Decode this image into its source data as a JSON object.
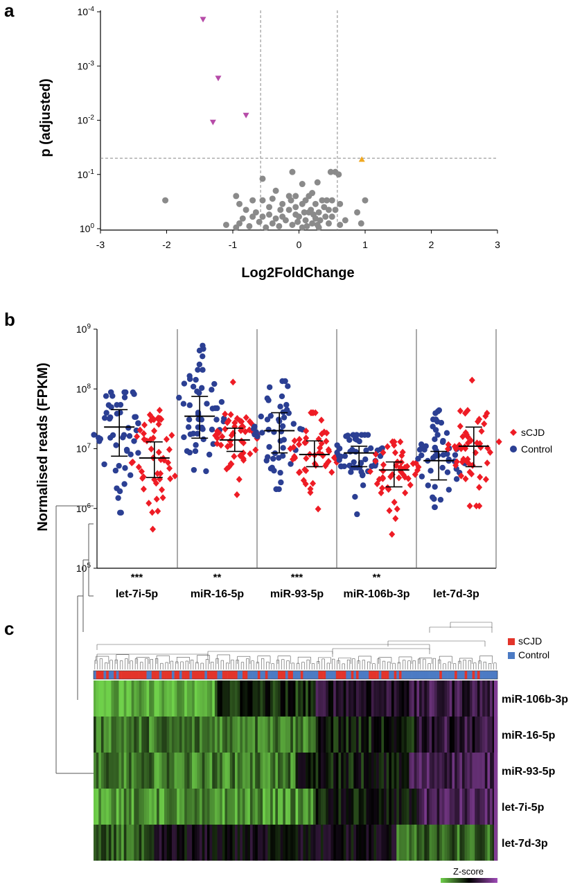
{
  "panels": {
    "a": {
      "letter": "a"
    },
    "b": {
      "letter": "b"
    },
    "c": {
      "letter": "c"
    }
  },
  "chart_data": [
    {
      "type": "scatter",
      "panel": "a",
      "xlabel": "Log2FoldChange",
      "ylabel": "p (adjusted)",
      "xlim": [
        -3,
        3
      ],
      "x_ticks": [
        "-3",
        "-2",
        "-1",
        "0",
        "1",
        "2",
        "3"
      ],
      "y_scale": "log (reversed)",
      "y_ticks": [
        {
          "base": "10",
          "exp": "-4",
          "value": 0.0001
        },
        {
          "base": "10",
          "exp": "-3",
          "value": 0.001
        },
        {
          "base": "10",
          "exp": "-2",
          "value": 0.01
        },
        {
          "base": "10",
          "exp": "-1",
          "value": 0.1
        },
        {
          "base": "10",
          "exp": "0",
          "value": 1
        }
      ],
      "thresholds": {
        "x": [
          -0.58,
          0.58
        ],
        "p": 0.05
      },
      "colors": {
        "down": "#b64ba8",
        "up": "#f0a821",
        "ns": "#8a8a8a"
      },
      "significant_down": [
        {
          "x": -1.45,
          "p": 0.00014
        },
        {
          "x": -1.22,
          "p": 0.0017
        },
        {
          "x": -1.3,
          "p": 0.011
        },
        {
          "x": -0.8,
          "p": 0.0082
        }
      ],
      "significant_up": [
        {
          "x": 0.95,
          "p": 0.052
        }
      ],
      "not_significant": [
        {
          "x": -2.02,
          "p": 0.3
        },
        {
          "x": -0.55,
          "p": 0.12
        },
        {
          "x": -0.1,
          "p": 0.09
        },
        {
          "x": 0.05,
          "p": 0.15
        },
        {
          "x": 0.28,
          "p": 0.14
        },
        {
          "x": 0.48,
          "p": 0.09
        },
        {
          "x": 0.55,
          "p": 0.09
        },
        {
          "x": 0.6,
          "p": 0.1
        },
        {
          "x": 1.0,
          "p": 0.3
        },
        {
          "x": 0.55,
          "p": 0.45
        },
        {
          "x": 0.62,
          "p": 0.35
        },
        {
          "x": 0.88,
          "p": 0.5
        },
        {
          "x": 0.94,
          "p": 0.8
        },
        {
          "x": 0.7,
          "p": 0.7
        },
        {
          "x": 0.45,
          "p": 0.8
        },
        {
          "x": 0.3,
          "p": 0.5
        },
        {
          "x": -0.95,
          "p": 0.25
        },
        {
          "x": -0.9,
          "p": 0.35
        },
        {
          "x": -0.8,
          "p": 0.45
        },
        {
          "x": -0.7,
          "p": 0.3
        },
        {
          "x": -0.65,
          "p": 0.5
        },
        {
          "x": -0.55,
          "p": 0.3
        },
        {
          "x": -0.45,
          "p": 0.55
        },
        {
          "x": -0.35,
          "p": 0.2
        },
        {
          "x": -0.25,
          "p": 0.35
        },
        {
          "x": -0.15,
          "p": 0.25
        },
        {
          "x": -0.05,
          "p": 0.4
        },
        {
          "x": 0.1,
          "p": 0.3
        },
        {
          "x": 0.2,
          "p": 0.22
        },
        {
          "x": 0.35,
          "p": 0.3
        },
        {
          "x": 0.15,
          "p": 0.5
        },
        {
          "x": 0.0,
          "p": 0.6
        },
        {
          "x": -0.2,
          "p": 0.7
        },
        {
          "x": -0.4,
          "p": 0.8
        },
        {
          "x": -0.6,
          "p": 0.75
        },
        {
          "x": -0.85,
          "p": 0.65
        },
        {
          "x": -1.1,
          "p": 0.85
        },
        {
          "x": -0.95,
          "p": 0.95
        },
        {
          "x": -0.75,
          "p": 0.9
        },
        {
          "x": -0.5,
          "p": 0.95
        },
        {
          "x": -0.3,
          "p": 0.9
        },
        {
          "x": -0.1,
          "p": 0.85
        },
        {
          "x": 0.05,
          "p": 0.95
        },
        {
          "x": 0.2,
          "p": 0.8
        },
        {
          "x": 0.3,
          "p": 0.95
        },
        {
          "x": 0.4,
          "p": 0.6
        },
        {
          "x": 0.1,
          "p": 0.7
        },
        {
          "x": -0.05,
          "p": 0.55
        },
        {
          "x": 0.25,
          "p": 0.65
        },
        {
          "x": -0.25,
          "p": 0.6
        },
        {
          "x": 0.05,
          "p": 0.35
        },
        {
          "x": 0.18,
          "p": 0.45
        },
        {
          "x": 0.38,
          "p": 0.4
        },
        {
          "x": 0.5,
          "p": 0.6
        },
        {
          "x": 0.62,
          "p": 0.85
        },
        {
          "x": -0.45,
          "p": 0.4
        },
        {
          "x": -0.15,
          "p": 0.45
        },
        {
          "x": 0.12,
          "p": 0.9
        },
        {
          "x": -0.35,
          "p": 0.65
        },
        {
          "x": 0.42,
          "p": 0.3
        },
        {
          "x": 0.22,
          "p": 0.55
        },
        {
          "x": -0.02,
          "p": 0.75
        },
        {
          "x": 0.32,
          "p": 0.7
        },
        {
          "x": -0.55,
          "p": 0.6
        },
        {
          "x": 0.08,
          "p": 0.5
        },
        {
          "x": 0.28,
          "p": 0.85
        },
        {
          "x": -0.12,
          "p": 0.3
        },
        {
          "x": -0.7,
          "p": 0.6
        },
        {
          "x": 0.15,
          "p": 0.25
        },
        {
          "x": -0.28,
          "p": 0.45
        },
        {
          "x": 0.45,
          "p": 0.45
        },
        {
          "x": -0.05,
          "p": 0.25
        },
        {
          "x": 0.25,
          "p": 0.35
        },
        {
          "x": -0.4,
          "p": 0.28
        },
        {
          "x": 0.5,
          "p": 0.3
        },
        {
          "x": -0.9,
          "p": 0.8
        }
      ]
    },
    {
      "type": "scatter",
      "panel": "b",
      "ylabel": "Normalised reads (FPKM)",
      "y_scale": "log",
      "ylim": [
        100000,
        1000000000
      ],
      "y_ticks": [
        {
          "base": "10",
          "exp": "5",
          "value": 100000
        },
        {
          "base": "10",
          "exp": "6",
          "value": 1000000
        },
        {
          "base": "10",
          "exp": "7",
          "value": 10000000
        },
        {
          "base": "10",
          "exp": "8",
          "value": 100000000
        },
        {
          "base": "10",
          "exp": "9",
          "value": 1000000000
        }
      ],
      "categories": [
        "let-7i-5p",
        "miR-16-5p",
        "miR-93-5p",
        "miR-106b-3p",
        "let-7d-3p"
      ],
      "significance": [
        "***",
        "**",
        "***",
        "**",
        ""
      ],
      "legend": [
        {
          "name": "sCJD",
          "color": "#ee1c25",
          "marker": "diamond"
        },
        {
          "name": "Control",
          "color": "#2b3f93",
          "marker": "circle"
        }
      ],
      "series": [
        {
          "name": "Control",
          "medians": [
            23000000,
            35000000,
            20000000,
            8500000,
            6300000
          ],
          "q1": [
            7500000,
            15000000,
            8500000,
            5000000,
            3000000
          ],
          "q3": [
            45000000,
            75000000,
            40000000,
            11000000,
            9000000
          ],
          "min": [
            850000,
            4200000,
            2100000,
            800000,
            1050000
          ],
          "max": [
            88000000,
            530000000,
            135000000,
            17000000,
            44000000
          ]
        },
        {
          "name": "sCJD",
          "medians": [
            7000000,
            14000000,
            8000000,
            4400000,
            11000000
          ],
          "q1": [
            3300000,
            9000000,
            5000000,
            2300000,
            5000000
          ],
          "q3": [
            13000000,
            22000000,
            13500000,
            6000000,
            23000000
          ],
          "min": [
            450000,
            1700000,
            980000,
            370000,
            1100000
          ],
          "max": [
            44000000,
            130000000,
            40000000,
            13000000,
            140000000
          ]
        }
      ]
    },
    {
      "type": "heatmap",
      "panel": "c",
      "rows": [
        "miR-106b-3p",
        "miR-16-5p",
        "miR-93-5p",
        "let-7i-5p",
        "let-7d-3p"
      ],
      "legend": [
        {
          "name": "sCJD",
          "color": "#e3342a"
        },
        {
          "name": "Control",
          "color": "#4c7bc4"
        }
      ],
      "colorbar_label": "Z-score",
      "colors": {
        "low": "#6fd04a",
        "mid": "#000000",
        "high": "#a04bb8"
      }
    }
  ]
}
